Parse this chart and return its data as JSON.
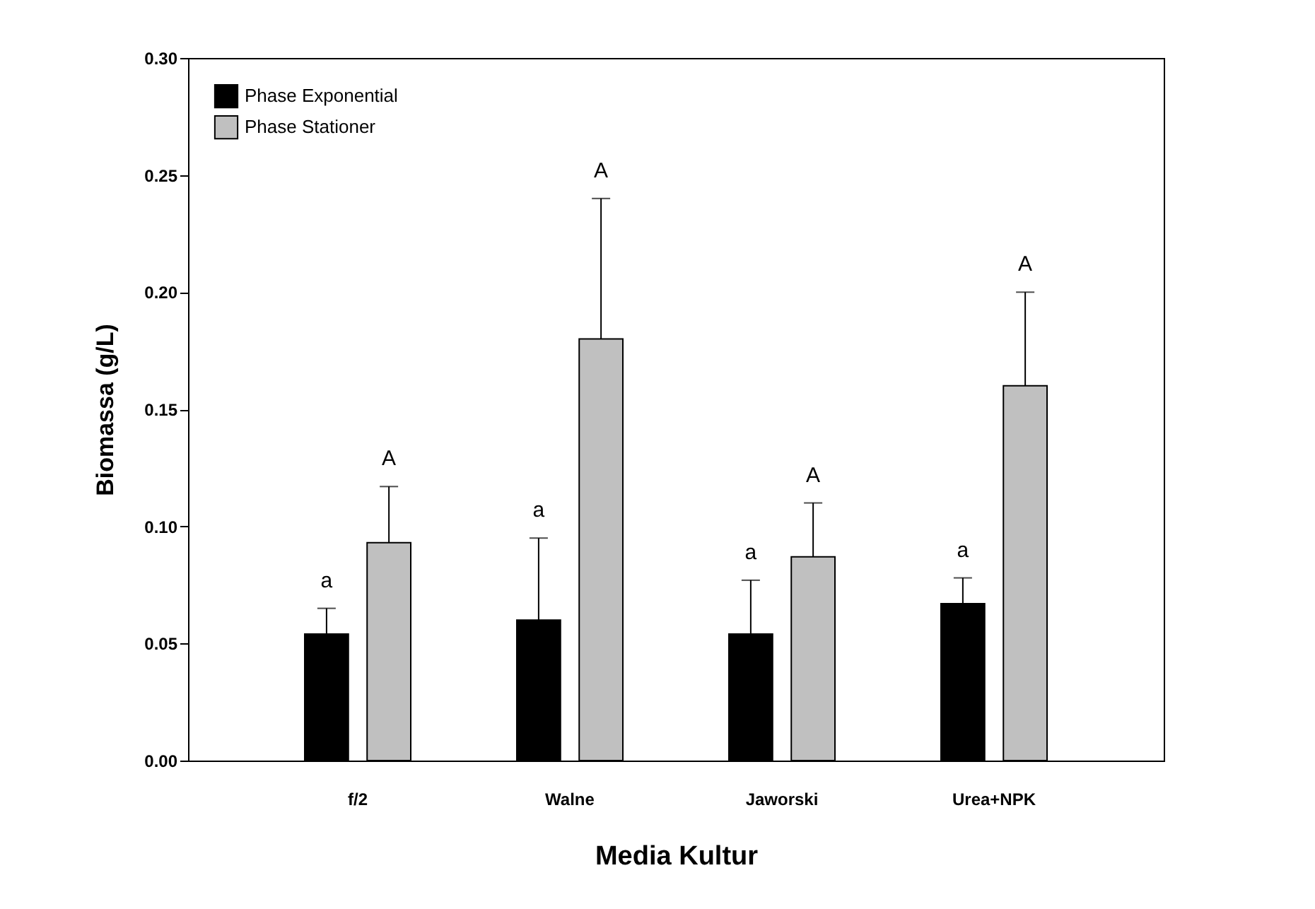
{
  "chart_data": {
    "type": "bar",
    "xlabel": "Media Kultur",
    "ylabel": "Biomassa (g/L)",
    "categories": [
      "f/2",
      "Walne",
      "Jaworski",
      "Urea+NPK"
    ],
    "series": [
      {
        "name": "Phase Exponential",
        "color": "#000000",
        "values": [
          0.054,
          0.06,
          0.054,
          0.067
        ],
        "errors": [
          [
            0.054,
            0.065
          ],
          [
            0.06,
            0.095
          ],
          [
            0.054,
            0.077
          ],
          [
            0.067,
            0.078
          ]
        ]
      },
      {
        "name": "Phase Stationer",
        "color": "#c0c0c0",
        "values": [
          0.093,
          0.18,
          0.087,
          0.16
        ],
        "errors": [
          [
            0.093,
            0.117
          ],
          [
            0.18,
            0.24
          ],
          [
            0.087,
            0.11
          ],
          [
            0.16,
            0.2
          ]
        ]
      }
    ],
    "ylim": [
      0,
      0.3
    ],
    "yticks": [
      {
        "value": 0,
        "label": "0.00"
      },
      {
        "value": 0.05,
        "label": "0.05"
      },
      {
        "value": 0.1,
        "label": "0.10"
      },
      {
        "value": 0.15,
        "label": "0.15"
      },
      {
        "value": 0.2,
        "label": "0.20"
      },
      {
        "value": 0.25,
        "label": "0.25"
      },
      {
        "value": 0.3,
        "label": "0.30"
      }
    ],
    "grid": false,
    "legend": "top left",
    "annotations": [
      "a",
      "A",
      "a",
      "A",
      "a",
      "A",
      "a",
      "A"
    ]
  }
}
